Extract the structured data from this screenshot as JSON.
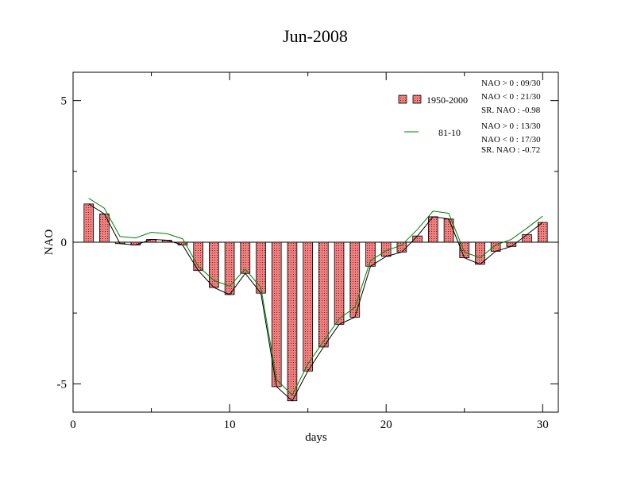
{
  "chart_data": {
    "type": "bar",
    "title": "Jun-2008",
    "xlabel": "days",
    "ylabel": "NAO",
    "xlim": [
      0,
      31
    ],
    "ylim": [
      -6,
      6
    ],
    "x_ticks": [
      0,
      10,
      20,
      30
    ],
    "y_ticks": [
      -5,
      0,
      5
    ],
    "x_tick_labels": [
      "0",
      "10",
      "20",
      "30"
    ],
    "y_tick_labels": [
      "-5",
      "0",
      "5"
    ],
    "x": [
      1,
      2,
      3,
      4,
      5,
      6,
      7,
      8,
      9,
      10,
      11,
      12,
      13,
      14,
      15,
      16,
      17,
      18,
      19,
      20,
      21,
      22,
      23,
      24,
      25,
      26,
      27,
      28,
      29,
      30
    ],
    "series": [
      {
        "name": "1950-2000",
        "kind": "bar",
        "color": "#f08080",
        "values": [
          1.35,
          1.0,
          -0.05,
          -0.1,
          0.1,
          0.07,
          -0.1,
          -1.0,
          -1.6,
          -1.85,
          -1.1,
          -1.8,
          -5.1,
          -5.6,
          -4.55,
          -3.7,
          -2.9,
          -2.65,
          -0.85,
          -0.5,
          -0.35,
          0.22,
          0.9,
          0.82,
          -0.55,
          -0.78,
          -0.32,
          -0.15,
          0.27,
          0.7
        ]
      },
      {
        "kind": "line",
        "color": "#000000",
        "values": [
          1.35,
          1.0,
          -0.05,
          -0.1,
          0.1,
          0.07,
          -0.1,
          -1.0,
          -1.6,
          -1.85,
          -1.1,
          -1.8,
          -5.1,
          -5.6,
          -4.55,
          -3.7,
          -2.9,
          -2.65,
          -0.85,
          -0.5,
          -0.35,
          0.22,
          0.9,
          0.82,
          -0.55,
          -0.78,
          -0.32,
          -0.15,
          0.27,
          0.7
        ]
      },
      {
        "name": "81-10",
        "kind": "line",
        "color": "#008000",
        "values": [
          1.55,
          1.2,
          0.2,
          0.15,
          0.35,
          0.3,
          0.12,
          -0.85,
          -1.35,
          -1.55,
          -0.95,
          -1.6,
          -4.85,
          -5.4,
          -4.3,
          -3.5,
          -2.7,
          -2.3,
          -0.65,
          -0.3,
          -0.1,
          0.45,
          1.1,
          1.02,
          -0.35,
          -0.55,
          -0.1,
          0.1,
          0.5,
          0.92
        ]
      }
    ],
    "legend": {
      "placement": "top-right",
      "entries": [
        {
          "label": "1950-2000",
          "stats": [
            "NAO > 0 : 09/30",
            "NAO < 0 : 21/30",
            "SR. NAO : -0.98"
          ]
        },
        {
          "label": "81-10",
          "stats": [
            "NAO > 0 : 13/30",
            "NAO < 0 : 17/30",
            "SR. NAO : -0.72"
          ]
        }
      ]
    }
  }
}
